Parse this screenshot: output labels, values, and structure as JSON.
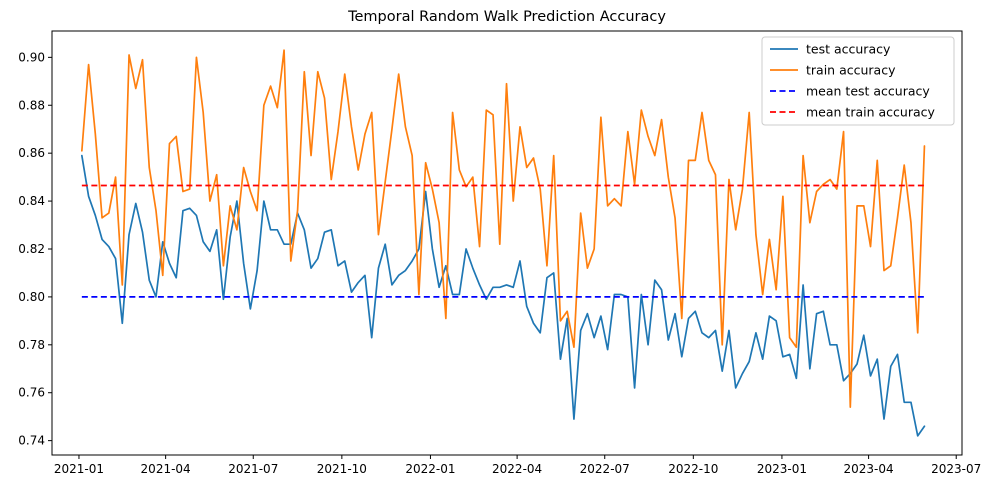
{
  "chart_data": {
    "type": "line",
    "title": "Temporal Random Walk Prediction Accuracy",
    "xlabel": "",
    "ylabel": "",
    "x_start": "2021-01-04",
    "step_days": 7,
    "xlim": [
      "2020-12-04",
      "2023-07-07"
    ],
    "ylim": [
      0.734,
      0.911
    ],
    "x_ticks": [
      "2021-01",
      "2021-04",
      "2021-07",
      "2021-10",
      "2022-01",
      "2022-04",
      "2022-07",
      "2022-10",
      "2023-01",
      "2023-04",
      "2023-07"
    ],
    "x_tick_dates": [
      "2021-01-01",
      "2021-04-01",
      "2021-07-01",
      "2021-10-01",
      "2022-01-01",
      "2022-04-01",
      "2022-07-01",
      "2022-10-01",
      "2023-01-01",
      "2023-04-01",
      "2023-07-01"
    ],
    "y_ticks": [
      0.74,
      0.76,
      0.78,
      0.8,
      0.82,
      0.84,
      0.86,
      0.88,
      0.9
    ],
    "y_tick_labels": [
      "0.74",
      "0.76",
      "0.78",
      "0.80",
      "0.82",
      "0.84",
      "0.86",
      "0.88",
      "0.90"
    ],
    "grid": false,
    "legend_position": "top-right",
    "series": [
      {
        "name": "test accuracy",
        "color": "#1f77b4",
        "style": "solid",
        "values": [
          0.859,
          0.842,
          0.834,
          0.824,
          0.821,
          0.816,
          0.789,
          0.826,
          0.839,
          0.827,
          0.807,
          0.8,
          0.823,
          0.814,
          0.808,
          0.836,
          0.837,
          0.834,
          0.823,
          0.819,
          0.828,
          0.799,
          0.825,
          0.84,
          0.814,
          0.795,
          0.811,
          0.84,
          0.828,
          0.828,
          0.822,
          0.822,
          0.835,
          0.828,
          0.812,
          0.816,
          0.827,
          0.828,
          0.813,
          0.815,
          0.802,
          0.806,
          0.809,
          0.783,
          0.812,
          0.822,
          0.805,
          0.809,
          0.811,
          0.815,
          0.82,
          0.844,
          0.82,
          0.804,
          0.813,
          0.801,
          0.801,
          0.82,
          0.812,
          0.805,
          0.799,
          0.804,
          0.804,
          0.805,
          0.804,
          0.815,
          0.796,
          0.789,
          0.785,
          0.808,
          0.81,
          0.774,
          0.791,
          0.749,
          0.786,
          0.793,
          0.783,
          0.792,
          0.778,
          0.801,
          0.801,
          0.8,
          0.762,
          0.801,
          0.78,
          0.807,
          0.803,
          0.782,
          0.793,
          0.775,
          0.791,
          0.794,
          0.785,
          0.783,
          0.786,
          0.769,
          0.786,
          0.762,
          0.768,
          0.773,
          0.785,
          0.774,
          0.792,
          0.79,
          0.775,
          0.776,
          0.766,
          0.805,
          0.77,
          0.793,
          0.794,
          0.78,
          0.78,
          0.765,
          0.768,
          0.772,
          0.784,
          0.767,
          0.774,
          0.749,
          0.771,
          0.776,
          0.756,
          0.756,
          0.742,
          0.746
        ]
      },
      {
        "name": "train accuracy",
        "color": "#ff7f0e",
        "style": "solid",
        "values": [
          0.861,
          0.897,
          0.868,
          0.833,
          0.835,
          0.85,
          0.805,
          0.901,
          0.887,
          0.899,
          0.854,
          0.836,
          0.809,
          0.864,
          0.867,
          0.844,
          0.845,
          0.9,
          0.877,
          0.84,
          0.851,
          0.813,
          0.838,
          0.828,
          0.854,
          0.844,
          0.836,
          0.88,
          0.888,
          0.879,
          0.903,
          0.815,
          0.836,
          0.894,
          0.859,
          0.894,
          0.883,
          0.849,
          0.869,
          0.893,
          0.871,
          0.853,
          0.868,
          0.877,
          0.826,
          0.848,
          0.87,
          0.893,
          0.871,
          0.859,
          0.801,
          0.856,
          0.845,
          0.831,
          0.791,
          0.877,
          0.853,
          0.846,
          0.85,
          0.821,
          0.878,
          0.876,
          0.822,
          0.889,
          0.84,
          0.871,
          0.854,
          0.858,
          0.845,
          0.813,
          0.859,
          0.79,
          0.794,
          0.779,
          0.835,
          0.812,
          0.82,
          0.875,
          0.838,
          0.841,
          0.838,
          0.869,
          0.847,
          0.878,
          0.867,
          0.859,
          0.874,
          0.85,
          0.833,
          0.791,
          0.857,
          0.857,
          0.877,
          0.857,
          0.851,
          0.78,
          0.849,
          0.828,
          0.845,
          0.877,
          0.826,
          0.801,
          0.824,
          0.803,
          0.842,
          0.783,
          0.779,
          0.859,
          0.831,
          0.844,
          0.847,
          0.849,
          0.845,
          0.869,
          0.754,
          0.838,
          0.838,
          0.821,
          0.857,
          0.811,
          0.813,
          0.833,
          0.855,
          0.831,
          0.785,
          0.863
        ]
      },
      {
        "name": "mean test accuracy",
        "color": "#0000ff",
        "style": "dashed",
        "values": [
          0.8
        ]
      },
      {
        "name": "mean train accuracy",
        "color": "#ff0000",
        "style": "dashed",
        "values": [
          0.8465
        ]
      }
    ]
  }
}
